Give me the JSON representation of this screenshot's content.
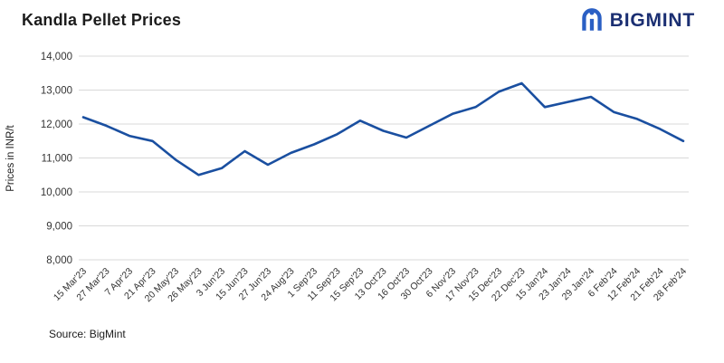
{
  "header": {
    "title": "Kandla Pellet Prices"
  },
  "logo": {
    "text": "BIGMINT",
    "text_color": "#1b2f72",
    "icon_color": "#2a5fc4"
  },
  "source": {
    "label": "Source: BigMint"
  },
  "chart_data": {
    "type": "line",
    "title": "Kandla Pellet Prices",
    "xlabel": "",
    "ylabel": "Prices in INR/t",
    "ylim": [
      8000,
      14000
    ],
    "ytick_step": 1000,
    "grid": true,
    "legend": "none",
    "line_color": "#1a4fa0",
    "grid_color": "#d9d9d9",
    "tick_label_color": "#333333",
    "categories": [
      "15 Mar'23",
      "27 Mar'23",
      "7 Apr'23",
      "21 Apr'23",
      "20 May'23",
      "26 May'23",
      "3 Jun'23",
      "15 Jun'23",
      "27 Jun'23",
      "24 Aug'23",
      "1 Sep'23",
      "11 Sep'23",
      "15 Sep'23",
      "13 Oct'23",
      "16 Oct'23",
      "30 Oct'23",
      "6 Nov'23",
      "17 Nov'23",
      "15 Dec'23",
      "22 Dec'23",
      "15 Jan'24",
      "23 Jan'24",
      "29 Jan'24",
      "6 Feb'24",
      "12 Feb'24",
      "21 Feb'24",
      "28 Feb'24"
    ],
    "values": [
      12200,
      11950,
      11650,
      11500,
      10950,
      10500,
      10700,
      11200,
      10800,
      11150,
      11400,
      11700,
      12100,
      11800,
      11600,
      11950,
      12300,
      12500,
      12950,
      13200,
      12500,
      12650,
      12800,
      12350,
      12150,
      11850,
      11500
    ]
  }
}
